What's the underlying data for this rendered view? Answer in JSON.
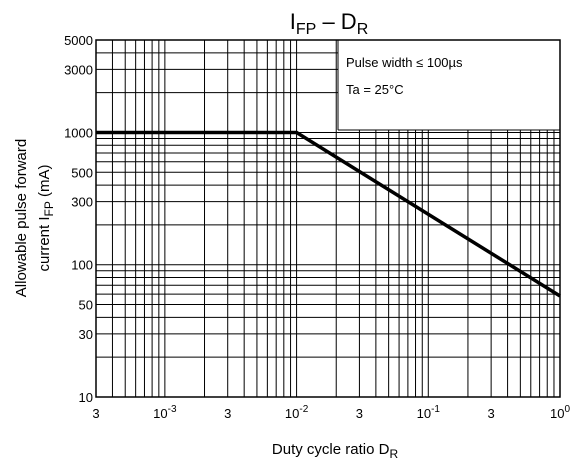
{
  "chart_data": {
    "type": "line",
    "title_main": "I",
    "title_sub1": "FP",
    "title_dash": " – D",
    "title_sub2": "R",
    "ylabel_line1": "Allowable  pulse  forward",
    "ylabel_line2_a": "current  I",
    "ylabel_line2_sub": "FP",
    "ylabel_line2_b": "  (mA)",
    "xlabel_a": "Duty   cycle ratio   D",
    "xlabel_sub": "R",
    "x_scale": "log",
    "y_scale": "log",
    "xlim": [
      0.0003,
      1
    ],
    "ylim": [
      10,
      5000
    ],
    "grid": true,
    "x_ticks": [
      {
        "value": 0.0003,
        "base": "3",
        "exp": ""
      },
      {
        "value": 0.001,
        "base": "10",
        "exp": "-3"
      },
      {
        "value": 0.003,
        "base": "3",
        "exp": ""
      },
      {
        "value": 0.01,
        "base": "10",
        "exp": "-2"
      },
      {
        "value": 0.03,
        "base": "3",
        "exp": ""
      },
      {
        "value": 0.1,
        "base": "10",
        "exp": "-1"
      },
      {
        "value": 0.3,
        "base": "3",
        "exp": ""
      },
      {
        "value": 1,
        "base": "10",
        "exp": "0"
      }
    ],
    "y_ticks": [
      {
        "value": 10,
        "label": "10"
      },
      {
        "value": 30,
        "label": "30"
      },
      {
        "value": 50,
        "label": "50"
      },
      {
        "value": 100,
        "label": "100"
      },
      {
        "value": 300,
        "label": "300"
      },
      {
        "value": 500,
        "label": "500"
      },
      {
        "value": 1000,
        "label": "1000"
      },
      {
        "value": 3000,
        "label": "3000"
      },
      {
        "value": 5000,
        "label": "5000"
      }
    ],
    "series": [
      {
        "x": [
          0.0003,
          0.01,
          1
        ],
        "y": [
          1000,
          1000,
          58
        ]
      }
    ],
    "annotations": [
      "Pulse width ≤ 100µs",
      "Ta = 25°C"
    ]
  }
}
